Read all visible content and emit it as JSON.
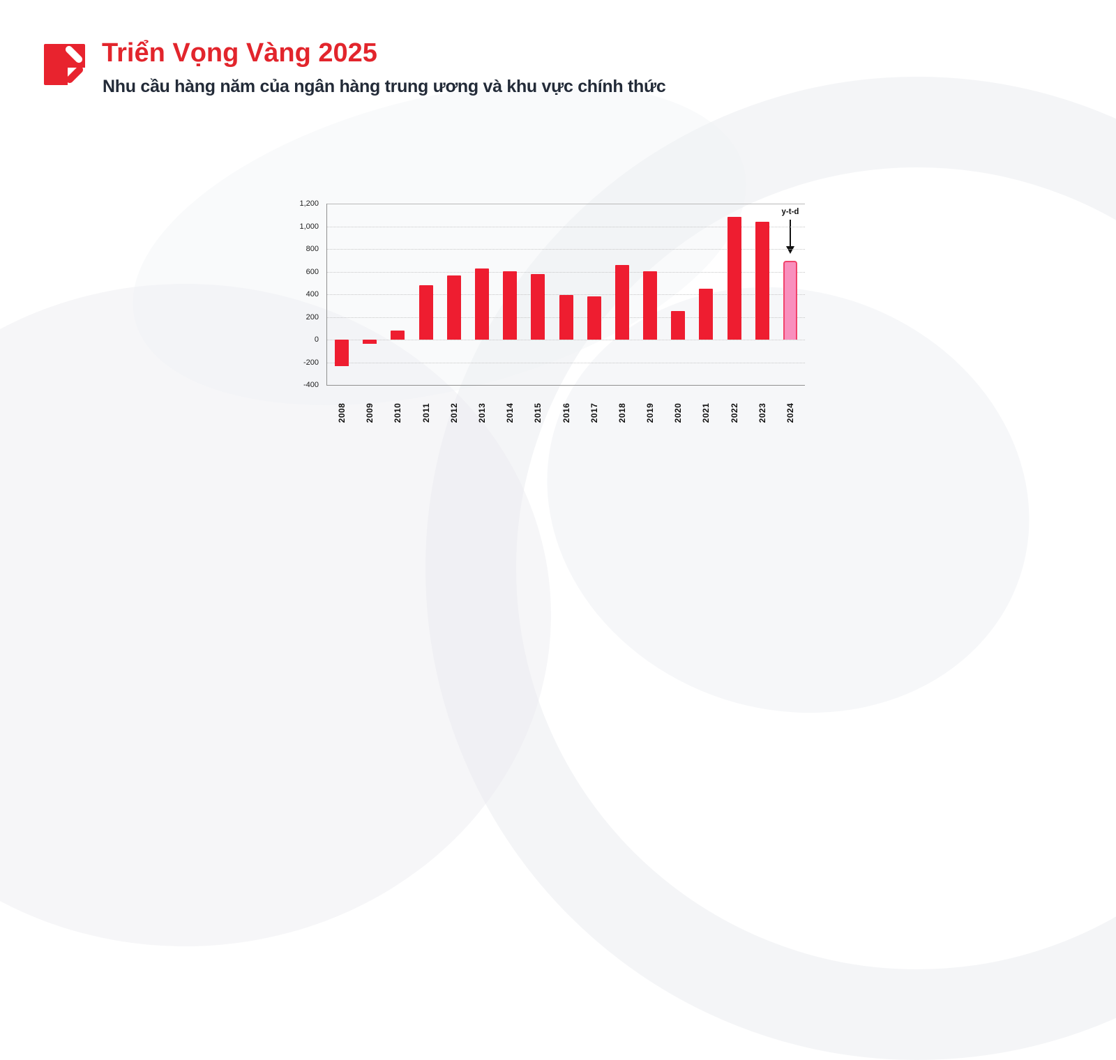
{
  "page": {
    "background_color": "#ffffff"
  },
  "header": {
    "title": "Triển Vọng Vàng 2025",
    "subtitle": "Nhu cầu hàng năm của ngân hàng trung ương và khu vực chính thức",
    "title_color": "#e2252c",
    "subtitle_color": "#232b38",
    "logo_color": "#e8232e"
  },
  "chart_data": {
    "type": "bar",
    "title": "",
    "xlabel": "",
    "ylabel": "",
    "categories": [
      "2008",
      "2009",
      "2010",
      "2011",
      "2012",
      "2013",
      "2014",
      "2015",
      "2016",
      "2017",
      "2018",
      "2019",
      "2020",
      "2021",
      "2022",
      "2023",
      "2024"
    ],
    "values": [
      -235,
      -35,
      79,
      481,
      569,
      629,
      601,
      580,
      395,
      379,
      656,
      605,
      255,
      450,
      1082,
      1037,
      694
    ],
    "ylim": [
      -400,
      1200
    ],
    "yticks": [
      {
        "value": 1200,
        "label": "1,200"
      },
      {
        "value": 1000,
        "label": "1,000"
      },
      {
        "value": 800,
        "label": "800"
      },
      {
        "value": 600,
        "label": "600"
      },
      {
        "value": 400,
        "label": "400"
      },
      {
        "value": 200,
        "label": "200"
      },
      {
        "value": 0,
        "label": "0"
      },
      {
        "value": -200,
        "label": "-200"
      },
      {
        "value": -400,
        "label": "-400"
      }
    ],
    "grid": true,
    "legend": "none",
    "bar_color": "#ee1d30",
    "highlight": {
      "category": "2024",
      "label": "y-t-d",
      "fill": "#f98fbd",
      "border": "#f0436b",
      "arrow": "down-arrow-icon"
    }
  }
}
